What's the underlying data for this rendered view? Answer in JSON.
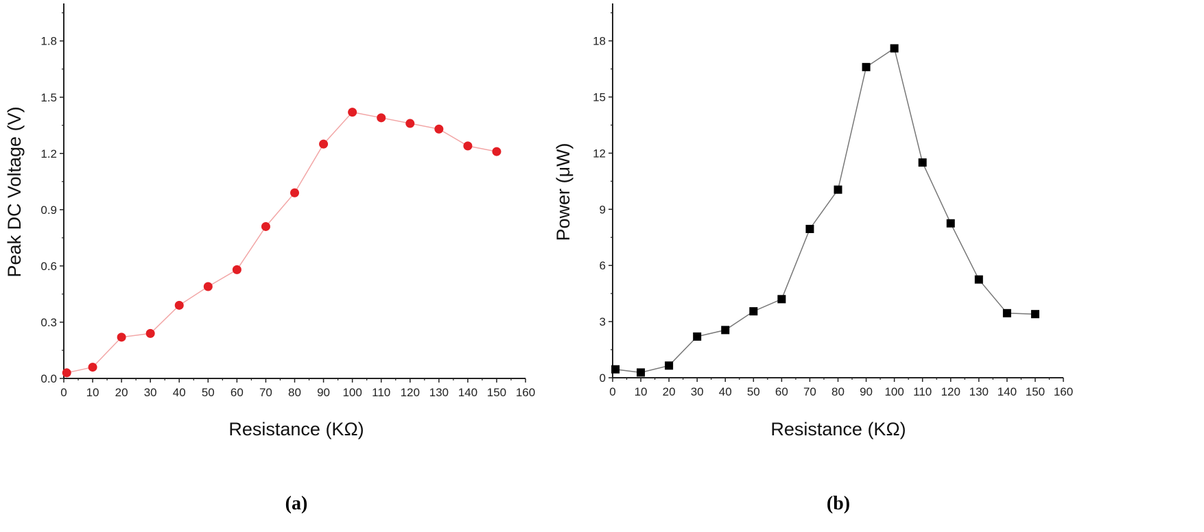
{
  "chart_data": [
    {
      "type": "line",
      "caption": "(a)",
      "xlabel": "Resistance (KΩ)",
      "ylabel": "Peak DC Voltage (V)",
      "xlim": [
        0,
        160
      ],
      "ylim": [
        0,
        2.0
      ],
      "xticks": [
        0,
        10,
        20,
        30,
        40,
        50,
        60,
        70,
        80,
        90,
        100,
        110,
        120,
        130,
        140,
        150,
        160
      ],
      "yticks": [
        0.0,
        0.3,
        0.6,
        0.9,
        1.2,
        1.5,
        1.8
      ],
      "ytick_labels": [
        "0.0",
        "0.3",
        "0.6",
        "0.9",
        "1.2",
        "1.5",
        "1.8"
      ],
      "grid": false,
      "marker": "circle",
      "marker_color": "#e31e24",
      "line_color": "#f2a6a6",
      "series": [
        {
          "name": "Peak DC Voltage",
          "x": [
            1,
            10,
            20,
            30,
            40,
            50,
            60,
            70,
            80,
            90,
            100,
            110,
            120,
            130,
            140,
            150
          ],
          "y": [
            0.03,
            0.06,
            0.22,
            0.24,
            0.39,
            0.49,
            0.58,
            0.81,
            0.99,
            1.25,
            1.42,
            1.39,
            1.36,
            1.33,
            1.24,
            1.21
          ]
        }
      ]
    },
    {
      "type": "line",
      "caption": "(b)",
      "xlabel": "Resistance (KΩ)",
      "ylabel": "Power (μW)",
      "xlim": [
        0,
        160
      ],
      "ylim": [
        0,
        20
      ],
      "xticks": [
        0,
        10,
        20,
        30,
        40,
        50,
        60,
        70,
        80,
        90,
        100,
        110,
        120,
        130,
        140,
        150,
        160
      ],
      "yticks": [
        0,
        3,
        6,
        9,
        12,
        15,
        18
      ],
      "ytick_labels": [
        "0",
        "3",
        "6",
        "9",
        "12",
        "15",
        "18"
      ],
      "grid": false,
      "marker": "square",
      "marker_color": "#000000",
      "line_color": "#777777",
      "series": [
        {
          "name": "Power",
          "x": [
            1,
            10,
            20,
            30,
            40,
            50,
            60,
            70,
            80,
            90,
            100,
            110,
            120,
            130,
            140,
            150
          ],
          "y": [
            0.45,
            0.28,
            0.65,
            2.2,
            2.55,
            3.55,
            4.2,
            7.95,
            10.05,
            16.6,
            17.6,
            11.5,
            8.25,
            5.25,
            3.45,
            3.4
          ]
        }
      ]
    }
  ]
}
